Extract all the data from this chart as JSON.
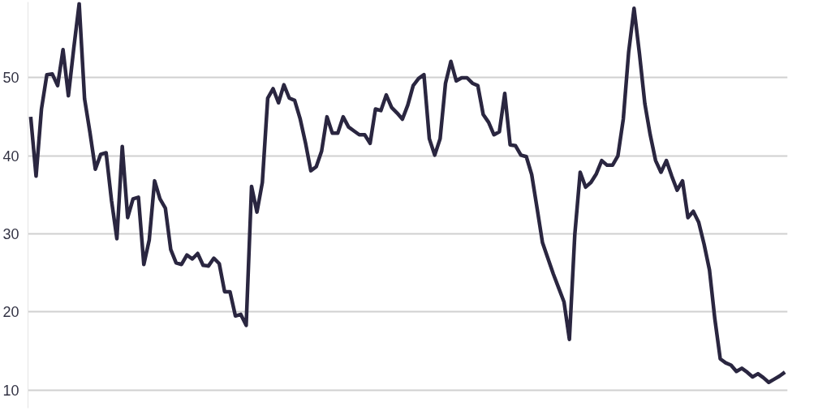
{
  "chart_data": {
    "type": "line",
    "categories": [
      null,
      null,
      null,
      null,
      null,
      null,
      null,
      null,
      null,
      null,
      null,
      null,
      null,
      null,
      null,
      null,
      null,
      null,
      null,
      null,
      null,
      null,
      null,
      null,
      null,
      null,
      null,
      null,
      null,
      null,
      null,
      null,
      null,
      null,
      null,
      null,
      null,
      null,
      null,
      null,
      null,
      null,
      null,
      null,
      null,
      null,
      null,
      null,
      null,
      null,
      null,
      null,
      null,
      null,
      null,
      null,
      null,
      null,
      null,
      null,
      null,
      null,
      null,
      null,
      null,
      null,
      null,
      null,
      null,
      null,
      null,
      null,
      null,
      null,
      null,
      null,
      null,
      null,
      null,
      null,
      null,
      null,
      null,
      null,
      null,
      null,
      null,
      null,
      null,
      null,
      null,
      null,
      null,
      null,
      null,
      null,
      null,
      null,
      null,
      null,
      null,
      null,
      null,
      null,
      null,
      null,
      null,
      null,
      null,
      null,
      null,
      null,
      null,
      null,
      null,
      null,
      null,
      null,
      null,
      null,
      null,
      null,
      null,
      null,
      null,
      null,
      null,
      null,
      null,
      null,
      null,
      null,
      null,
      null,
      null,
      null,
      null,
      null,
      null,
      null,
      null
    ],
    "series": [
      {
        "color": "#2a2640",
        "values": [
          45.0,
          37.4,
          46.0,
          50.4,
          50.5,
          49.0,
          53.6,
          47.7,
          53.8,
          59.5,
          47.3,
          43.0,
          38.3,
          40.2,
          40.4,
          34.3,
          29.4,
          41.2,
          32.1,
          34.5,
          34.7,
          26.1,
          29.2,
          36.8,
          34.5,
          33.3,
          28.0,
          26.3,
          26.1,
          27.3,
          26.8,
          27.5,
          26.0,
          25.9,
          26.9,
          26.2,
          22.6,
          22.6,
          19.5,
          19.7,
          18.3,
          36.1,
          32.8,
          36.6,
          47.4,
          48.6,
          46.8,
          49.1,
          47.4,
          47.1,
          44.8,
          41.7,
          38.1,
          38.6,
          40.6,
          45.0,
          42.9,
          42.9,
          45.0,
          43.7,
          43.2,
          42.7,
          42.7,
          41.6,
          46.0,
          45.8,
          47.8,
          46.2,
          45.5,
          44.7,
          46.5,
          49.0,
          49.9,
          50.4,
          42.2,
          40.1,
          42.2,
          49.3,
          52.1,
          49.6,
          50.0,
          50.0,
          49.3,
          49.0,
          45.3,
          44.3,
          42.7,
          43.1,
          48.0,
          41.4,
          41.3,
          40.1,
          39.9,
          37.6,
          33.3,
          28.9,
          26.9,
          24.9,
          23.1,
          21.3,
          16.5,
          29.9,
          37.9,
          36.0,
          36.6,
          37.7,
          39.4,
          38.8,
          38.8,
          40.0,
          44.7,
          53.3,
          58.9,
          53.1,
          46.7,
          42.7,
          39.4,
          37.9,
          39.4,
          37.4,
          35.6,
          36.8,
          32.1,
          32.9,
          31.5,
          28.7,
          25.4,
          19.1,
          14.0,
          13.5,
          13.2,
          12.4,
          12.8,
          12.3,
          11.7,
          12.1,
          11.6,
          11.0,
          11.4,
          11.8,
          12.3
        ]
      }
    ],
    "ylim": [
      7.7,
      59.7
    ],
    "yticks": [
      10,
      20,
      30,
      40,
      50
    ],
    "grid": "y",
    "tick_labels": "y"
  }
}
